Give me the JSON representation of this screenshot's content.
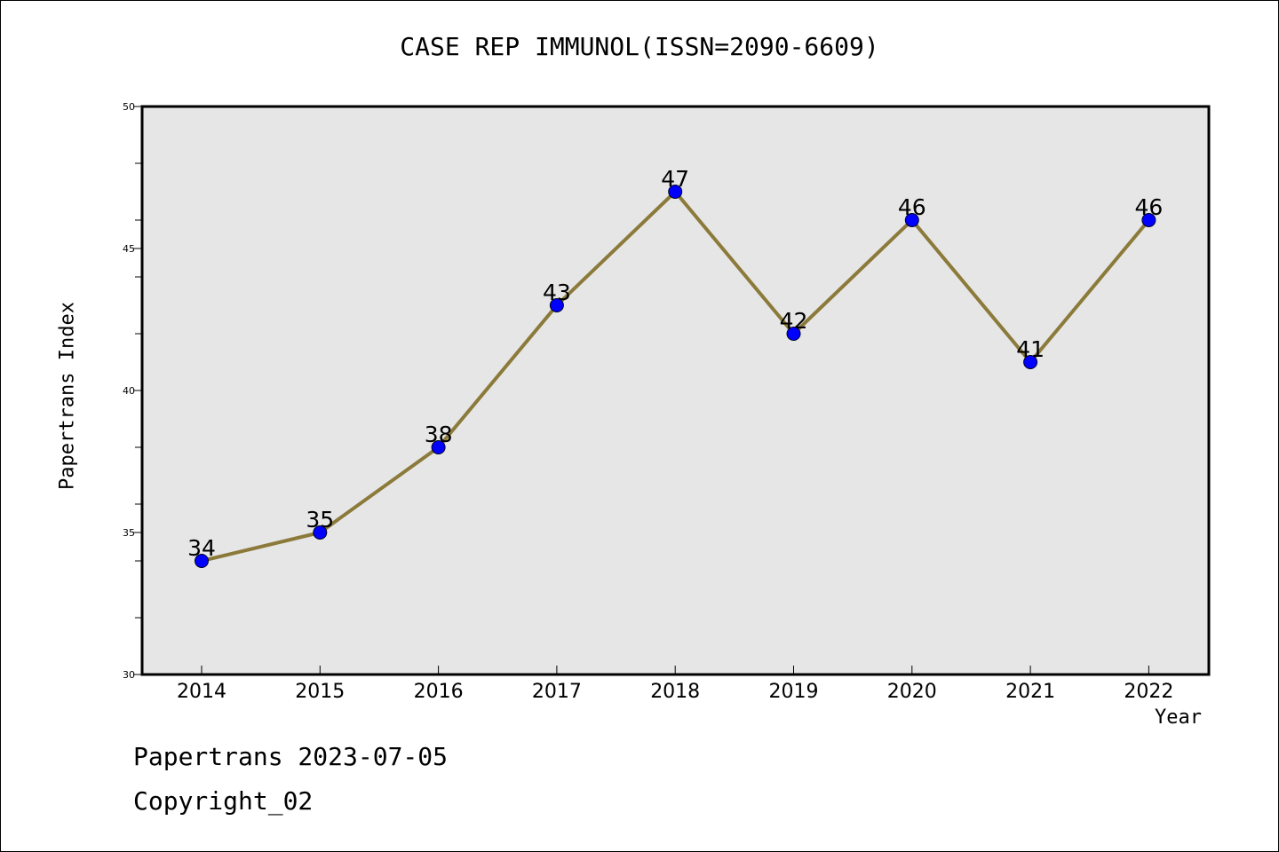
{
  "chart_data": {
    "type": "line",
    "title": "CASE REP IMMUNOL(ISSN=2090-6609)",
    "xlabel": "Year",
    "ylabel": "Papertrans Index",
    "categories": [
      "2014",
      "2015",
      "2016",
      "2017",
      "2018",
      "2019",
      "2020",
      "2021",
      "2022"
    ],
    "series": [
      {
        "values": [
          34,
          35,
          38,
          43,
          47,
          42,
          46,
          41,
          46
        ]
      }
    ],
    "data_labels": [
      "34",
      "35",
      "38",
      "43",
      "47",
      "42",
      "46",
      "41",
      "46"
    ],
    "ylim": [
      30,
      50
    ],
    "yticks": [
      "30",
      "35",
      "40",
      "45",
      "50"
    ],
    "grid": false,
    "colors": {
      "line": "#8b7a3a",
      "marker": "#0000ff",
      "plot_background": "#e6e6e6"
    }
  },
  "footer": {
    "date_text": "Papertrans 2023-07-05",
    "copyright_text": "Copyright_02"
  }
}
